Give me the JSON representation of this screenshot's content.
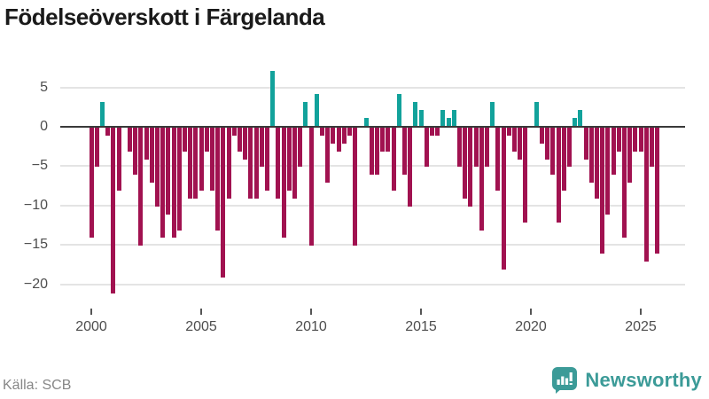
{
  "title": "Födelseöverskott i Färgelanda",
  "source": "Källa: SCB",
  "brand": {
    "name": "Newsworthy",
    "color": "#3c9b98",
    "icon": "bar-chart-speech-bubble-icon"
  },
  "colors": {
    "positive": "#12a29b",
    "negative": "#a11250",
    "grid": "#e4e4e4",
    "zero_line": "#3a3a3a",
    "axis_text": "#4d4d4d",
    "title_text": "#1a1a1a",
    "source_text": "#878787"
  },
  "chart_data": {
    "type": "bar",
    "title": "Födelseöverskott i Färgelanda",
    "frequency": "quarterly",
    "start": "2000-Q1",
    "end": "2025-Q4",
    "x_tick_labels": [
      "2000",
      "2005",
      "2010",
      "2015",
      "2020",
      "2025"
    ],
    "y_tick_labels": [
      "5",
      "0",
      "−5",
      "−10",
      "−15",
      "−20"
    ],
    "y_ticks": [
      5,
      0,
      -5,
      -10,
      -15,
      -20
    ],
    "ylim": [
      -22,
      8
    ],
    "grid": true,
    "legend": false,
    "values": [
      -14,
      -5,
      3,
      -1,
      -21,
      -8,
      0,
      -3,
      -6,
      -15,
      -4,
      -7,
      -10,
      -14,
      -11,
      -14,
      -13,
      -3,
      -9,
      -9,
      -8,
      -3,
      -8,
      -13,
      -19,
      -9,
      -1,
      -3,
      -4,
      -9,
      -9,
      -5,
      -8,
      7,
      -9,
      -14,
      -8,
      -9,
      -5,
      3,
      -15,
      4,
      -1,
      -7,
      -2,
      -3,
      -2,
      -1,
      -15,
      0,
      1,
      -6,
      -6,
      -3,
      -3,
      -8,
      4,
      -6,
      -10,
      3,
      2,
      -5,
      -1,
      -1,
      2,
      1,
      2,
      -5,
      -9,
      -10,
      -5,
      -13,
      -5,
      3,
      -8,
      -18,
      -1,
      -3,
      -4,
      -12,
      0,
      3,
      -2,
      -4,
      -6,
      -12,
      -8,
      -5,
      1,
      2,
      -4,
      -7,
      -9,
      -16,
      -11,
      -6,
      -3,
      -14,
      -7,
      -3,
      -3,
      -17,
      -5,
      -16
    ]
  }
}
